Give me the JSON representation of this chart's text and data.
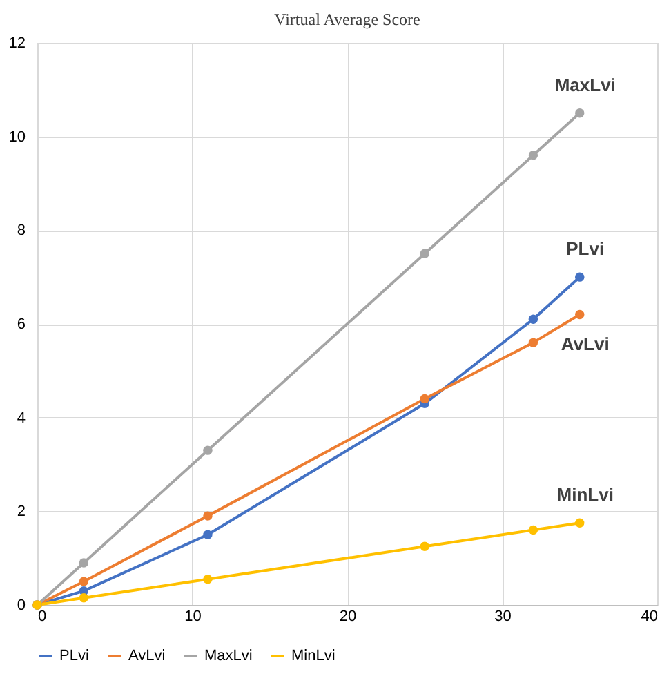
{
  "chart_data": {
    "type": "line",
    "title": "Virtual Average Score",
    "x": [
      0,
      3,
      11,
      25,
      32,
      35
    ],
    "series": [
      {
        "name": "PLvi",
        "color": "#4472c4",
        "values": [
          0,
          0.3,
          1.5,
          4.3,
          6.1,
          7.0
        ]
      },
      {
        "name": "AvLvi",
        "color": "#ed7d31",
        "values": [
          0,
          0.5,
          1.9,
          4.4,
          5.6,
          6.2
        ]
      },
      {
        "name": "MaxLvi",
        "color": "#a5a5a5",
        "values": [
          0,
          0.9,
          3.3,
          7.5,
          9.6,
          10.5
        ]
      },
      {
        "name": "MinLvi",
        "color": "#ffc000",
        "values": [
          0,
          0.15,
          0.55,
          1.25,
          1.6,
          1.75
        ]
      }
    ],
    "xlim": [
      0,
      40
    ],
    "xticks": [
      0,
      10,
      20,
      30,
      40
    ],
    "ylim": [
      0,
      12
    ],
    "yticks": [
      0,
      2,
      4,
      6,
      8,
      10,
      12
    ],
    "grid": true,
    "legend": "bottom",
    "marker": "circle",
    "line_style": "solid"
  }
}
